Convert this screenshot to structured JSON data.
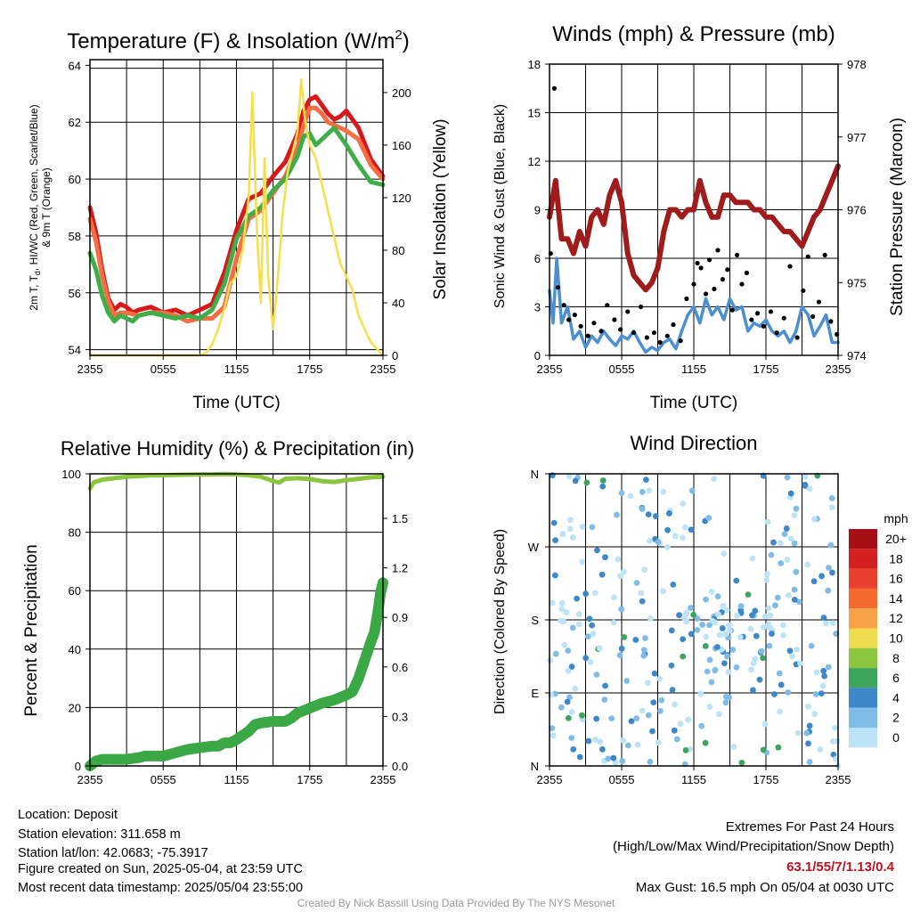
{
  "colors": {
    "red": "#d7191c",
    "orange": "#f46d43",
    "green": "#3fae49",
    "yellow": "#f6df4a",
    "blue": "#4a90d0",
    "black": "#000000",
    "maroon": "#a01c1c",
    "rh": "#8cc63e",
    "precip": "#3aa844"
  },
  "chart_data": [
    {
      "type": "line",
      "title": "Temperature (F) & Insolation (W/m²)",
      "xlabel": "Time (UTC)",
      "ylabel": "2m T, Td, HI/WC (Red, Green, Scarlet/Blue) & 9m T (Orange)",
      "ylabel_line1": "2m T, T",
      "ylabel_sub": "d",
      "ylabel_line1b": ", HI/WC (Red, Green, Scarlet/Blue)",
      "ylabel_line2": "& 9m T (Orange)",
      "y2label": "Solar Insolation (Yellow)",
      "x_ticks": [
        "2355",
        "0555",
        "1155",
        "1755",
        "2355"
      ],
      "ylim": [
        53.8,
        64.2
      ],
      "y_ticks": [
        "54",
        "56",
        "58",
        "60",
        "62",
        "64"
      ],
      "y2lim": [
        0,
        225
      ],
      "y2_ticks": [
        "0",
        "40",
        "80",
        "120",
        "160",
        "200"
      ],
      "hlines": [
        54.0,
        63.9
      ],
      "series": [
        {
          "name": "2m T",
          "color": "red",
          "x": [
            0,
            0.5,
            1,
            1.5,
            2,
            2.5,
            3,
            3.5,
            4,
            5,
            6,
            7,
            8,
            9,
            10,
            11,
            12,
            13,
            14,
            15,
            16,
            17,
            17.5,
            18,
            18.5,
            19,
            19.5,
            20,
            20.5,
            21,
            22,
            23,
            24
          ],
          "y": [
            59.0,
            58.1,
            56.8,
            55.8,
            55.4,
            55.6,
            55.5,
            55.3,
            55.4,
            55.5,
            55.3,
            55.4,
            55.2,
            55.4,
            55.6,
            56.7,
            58.2,
            59.3,
            59.5,
            60.1,
            60.6,
            61.6,
            62.4,
            62.8,
            62.9,
            62.6,
            62.3,
            62.1,
            62.2,
            62.4,
            61.8,
            60.7,
            60.1
          ]
        },
        {
          "name": "9m T",
          "color": "orange",
          "x": [
            0,
            0.5,
            1,
            1.5,
            2,
            2.5,
            3,
            4,
            5,
            6,
            7,
            8,
            9,
            10,
            11,
            12,
            13,
            14,
            15,
            16,
            17,
            17.5,
            18,
            18.5,
            19,
            19.5,
            20,
            21,
            22,
            23,
            24
          ],
          "y": [
            58.6,
            57.8,
            56.6,
            55.7,
            55.2,
            55.3,
            55.3,
            55.2,
            55.3,
            55.3,
            55.2,
            55.0,
            55.1,
            55.1,
            55.5,
            57.2,
            58.6,
            58.9,
            59.5,
            60.1,
            61.1,
            61.9,
            62.5,
            62.5,
            62.3,
            62.0,
            61.9,
            61.7,
            61.4,
            60.5,
            60.0
          ]
        },
        {
          "name": "Td",
          "color": "green",
          "x": [
            0,
            0.5,
            1,
            1.5,
            2,
            2.5,
            3,
            3.5,
            4,
            5,
            6,
            7,
            8,
            9,
            10,
            11,
            12,
            13,
            14,
            15,
            16,
            17,
            17.5,
            18,
            18.5,
            19,
            19.5,
            20,
            21,
            22,
            23,
            24
          ],
          "y": [
            57.4,
            56.8,
            55.9,
            55.3,
            55.0,
            55.2,
            55.1,
            55.0,
            55.2,
            55.3,
            55.2,
            55.1,
            55.2,
            55.1,
            55.4,
            56.3,
            57.9,
            58.7,
            59.0,
            59.6,
            60.0,
            60.8,
            61.5,
            61.6,
            61.2,
            61.4,
            61.6,
            61.8,
            61.2,
            60.5,
            59.9,
            59.8
          ]
        },
        {
          "name": "Insolation",
          "color": "yellow",
          "axis": "y2",
          "x": [
            0,
            2,
            4,
            6,
            8,
            9,
            9.5,
            10,
            10.5,
            11,
            11.5,
            12,
            12.5,
            13,
            13.3,
            13.7,
            14,
            14.3,
            14.6,
            15,
            15.4,
            15.8,
            16.2,
            16.6,
            17,
            17.3,
            17.6,
            18,
            18.5,
            19,
            19.5,
            20,
            20.5,
            21,
            21.5,
            22,
            22.5,
            23,
            23.5,
            24
          ],
          "y": [
            0,
            0,
            0,
            0,
            0,
            0,
            2,
            8,
            20,
            35,
            55,
            60,
            80,
            120,
            200,
            90,
            40,
            150,
            60,
            20,
            60,
            110,
            140,
            155,
            170,
            210,
            180,
            160,
            150,
            130,
            110,
            90,
            70,
            60,
            50,
            30,
            20,
            10,
            5,
            0
          ]
        }
      ]
    },
    {
      "type": "line",
      "title": "Winds (mph) & Pressure (mb)",
      "xlabel": "Time (UTC)",
      "ylabel": "Sonic Wind & Gust (Blue, Black)",
      "y2label": "Station Pressure (Maroon)",
      "x_ticks": [
        "2355",
        "0555",
        "1155",
        "1755",
        "2355"
      ],
      "ylim": [
        0,
        18
      ],
      "y_ticks": [
        "0",
        "3",
        "6",
        "9",
        "12",
        "15",
        "18"
      ],
      "y2lim": [
        974,
        978
      ],
      "y2_ticks": [
        "974",
        "975",
        "976",
        "977",
        "978"
      ],
      "series": [
        {
          "name": "Wind",
          "color": "blue",
          "x": [
            0,
            0.3,
            0.6,
            1,
            1.5,
            2,
            2.5,
            3,
            3.5,
            4,
            4.5,
            5,
            5.5,
            6,
            6.5,
            7,
            7.5,
            8,
            8.5,
            9,
            9.5,
            10,
            10.5,
            11,
            11.5,
            12,
            12.5,
            13,
            13.5,
            14,
            14.5,
            15,
            15.5,
            16,
            16.5,
            17,
            17.5,
            18,
            18.5,
            19,
            19.5,
            20,
            20.5,
            21,
            21.5,
            22,
            22.5,
            23,
            23.5,
            24
          ],
          "y": [
            4,
            2,
            6,
            2,
            3,
            1,
            1.5,
            0.5,
            1.2,
            0.8,
            1.5,
            1,
            0.6,
            1.2,
            1,
            1.5,
            0.8,
            0.2,
            0.5,
            0.3,
            0.8,
            1,
            0.4,
            1.5,
            2.5,
            3,
            2,
            3.5,
            2.5,
            3,
            2.2,
            3.5,
            2.8,
            3,
            1.5,
            2,
            1.8,
            2.2,
            1.5,
            1.2,
            1.5,
            0.8,
            1.5,
            3,
            2.5,
            1.2,
            1.8,
            2.5,
            0.8,
            0.8
          ]
        },
        {
          "name": "Gust",
          "color": "black",
          "type": "scatter",
          "x": [
            0.1,
            0.4,
            0.7,
            1.2,
            1.6,
            2.1,
            2.6,
            3.2,
            3.7,
            4.3,
            4.8,
            5.4,
            5.9,
            6.5,
            7.0,
            7.6,
            8.1,
            8.7,
            9.2,
            9.8,
            10.3,
            10.9,
            11.4,
            12.0,
            12.3,
            12.6,
            13.0,
            13.3,
            13.7,
            14.0,
            14.4,
            14.8,
            15.2,
            15.6,
            16.0,
            16.4,
            16.8,
            17.3,
            17.8,
            18.4,
            18.9,
            19.5,
            20.0,
            20.6,
            21.1,
            21.5,
            21.9,
            22.4,
            22.9,
            23.4,
            23.9
          ],
          "y": [
            6.3,
            16.5,
            4.2,
            3.1,
            2.2,
            2.5,
            1.8,
            1.2,
            2.0,
            1.5,
            3.1,
            2.2,
            1.6,
            2.7,
            1.4,
            3.0,
            1.1,
            1.4,
            0.8,
            1.2,
            1.9,
            0.9,
            3.5,
            4.4,
            5.7,
            5.4,
            3.8,
            5.9,
            4.1,
            6.5,
            4.7,
            5.3,
            2.8,
            6.2,
            4.4,
            5.1,
            2.2,
            2.6,
            1.8,
            2.7,
            1.4,
            2.3,
            5.5,
            1.1,
            4.0,
            6.1,
            2.4,
            3.3,
            6.2,
            2.1,
            1.3
          ]
        },
        {
          "name": "Pressure",
          "color": "maroon",
          "axis": "y2",
          "x": [
            0,
            0.5,
            1,
            1.5,
            2,
            2.5,
            3,
            3.5,
            4,
            4.5,
            5,
            5.5,
            6,
            6.5,
            7,
            7.5,
            8,
            8.5,
            9,
            9.5,
            10,
            10.5,
            11,
            11.5,
            12,
            12.5,
            13,
            13.5,
            14,
            14.5,
            15,
            15.5,
            16,
            16.5,
            17,
            17.5,
            18,
            18.5,
            19,
            19.5,
            20,
            20.5,
            21,
            21.5,
            22,
            22.5,
            23,
            23.5,
            24
          ],
          "y": [
            975.9,
            976.4,
            975.6,
            975.6,
            975.4,
            975.7,
            975.5,
            975.9,
            976.0,
            975.8,
            976.2,
            976.4,
            976.1,
            975.4,
            975.1,
            975.0,
            974.9,
            975.0,
            975.2,
            975.7,
            976.0,
            976.0,
            975.9,
            976.0,
            976.0,
            976.4,
            976.1,
            975.9,
            975.9,
            976.2,
            976.2,
            976.1,
            976.1,
            976.1,
            976.0,
            976.0,
            975.9,
            975.9,
            975.8,
            975.7,
            975.7,
            975.6,
            975.5,
            975.7,
            975.9,
            976.0,
            976.2,
            976.4,
            976.6
          ]
        }
      ]
    },
    {
      "type": "line",
      "title": "Relative Humidity (%) & Precipitation (in)",
      "ylabel": "Percent & Precipitation",
      "x_ticks": [
        "2355",
        "0555",
        "1155",
        "1755",
        "2355"
      ],
      "ylim": [
        0,
        100
      ],
      "y_ticks": [
        "0",
        "20",
        "40",
        "60",
        "80",
        "100"
      ],
      "y2lim": [
        0,
        1.77
      ],
      "y2_ticks": [
        "0.0",
        "0.3",
        "0.6",
        "0.9",
        "1.2",
        "1.5"
      ],
      "series": [
        {
          "name": "RH",
          "color": "rh",
          "x": [
            0,
            0.3,
            1,
            2,
            3,
            4,
            5,
            6,
            7,
            8,
            9,
            10,
            11,
            12,
            13,
            14,
            15,
            15.5,
            16,
            17,
            18,
            19,
            20,
            21,
            22,
            23,
            24
          ],
          "y": [
            95,
            97,
            98,
            98.5,
            99,
            99.2,
            99.5,
            99.5,
            99.6,
            99.7,
            99.8,
            99.8,
            99.9,
            99.8,
            99.5,
            99,
            97.5,
            97,
            98.3,
            98.5,
            98.2,
            97.5,
            97.2,
            97.8,
            98.3,
            98.8,
            99
          ]
        },
        {
          "name": "Precip",
          "color": "precip",
          "axis": "y2",
          "x": [
            0,
            0.5,
            1,
            2,
            3,
            4,
            4.5,
            5,
            6,
            7,
            8,
            9,
            10,
            10.5,
            11,
            11.5,
            12,
            13,
            13.5,
            14,
            15,
            16,
            16.5,
            17,
            18,
            19,
            20,
            21,
            21.5,
            22,
            22.5,
            23,
            23.3,
            23.6,
            23.8,
            24
          ],
          "y": [
            0.0,
            0.03,
            0.04,
            0.04,
            0.04,
            0.05,
            0.06,
            0.06,
            0.06,
            0.08,
            0.1,
            0.11,
            0.12,
            0.12,
            0.14,
            0.14,
            0.16,
            0.21,
            0.25,
            0.26,
            0.27,
            0.27,
            0.29,
            0.32,
            0.35,
            0.38,
            0.4,
            0.43,
            0.45,
            0.53,
            0.64,
            0.75,
            0.81,
            0.94,
            1.05,
            1.11
          ]
        }
      ]
    },
    {
      "type": "scatter",
      "title": "Wind Direction",
      "ylabel": "Direction (Colored By Speed)",
      "x_ticks": [
        "2355",
        "0555",
        "1155",
        "1755",
        "2355"
      ],
      "y_ticks": [
        "N",
        "E",
        "S",
        "W",
        "N"
      ],
      "ylim": [
        0,
        360
      ],
      "colorbar": {
        "unit": "mph",
        "labels": [
          "20+",
          "18",
          "16",
          "14",
          "12",
          "10",
          "8",
          "6",
          "4",
          "2",
          "0"
        ],
        "colors": [
          "#a50f15",
          "#d42020",
          "#e8412d",
          "#f26a2c",
          "#f9a146",
          "#eedb4e",
          "#8cc63e",
          "#3ea55f",
          "#3d88c8",
          "#7fbde8",
          "#bde3f7"
        ]
      },
      "seed": 42
    }
  ],
  "info": {
    "location": "Location: Deposit",
    "elevation": "Station elevation: 311.658 m",
    "latlon": "Station lat/lon: 42.0683; -75.3917",
    "created": "Figure created on Sun, 2025-05-04, at 23:59 UTC",
    "recent": "Most recent data timestamp: 2025/05/04 23:55:00"
  },
  "extremes": {
    "title": "Extremes For Past 24 Hours",
    "subtitle": "(High/Low/Max Wind/Precipitation/Snow Depth)",
    "values": "63.1/55/7/1.13/0.4",
    "max_gust": "Max Gust: 16.5 mph On 05/04 at 0030 UTC"
  },
  "credit": "Created By Nick Bassill Using Data Provided By The NYS Mesonet"
}
